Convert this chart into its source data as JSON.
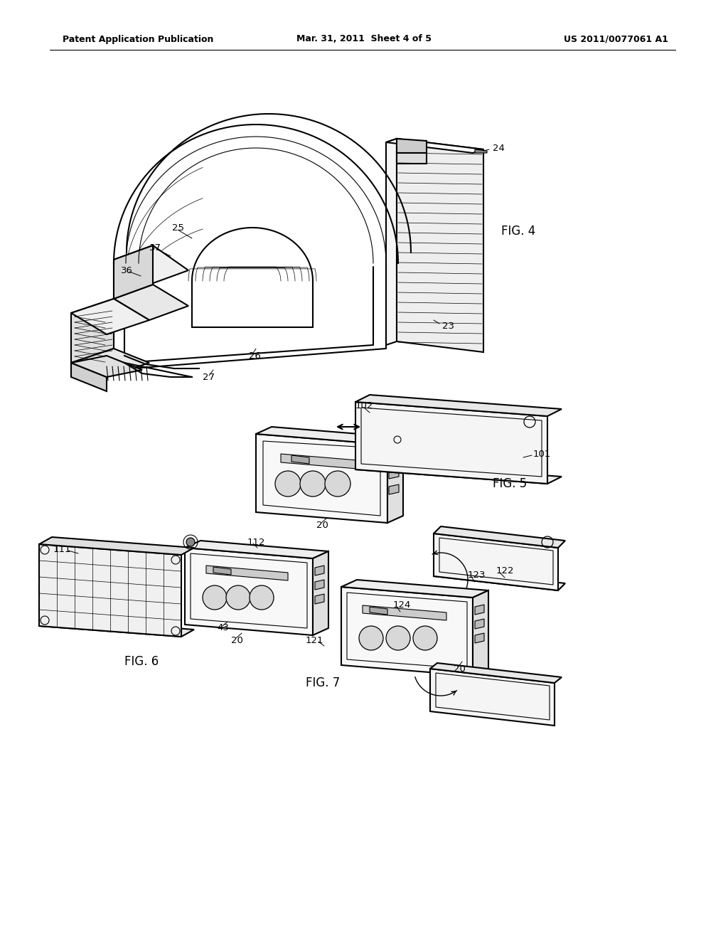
{
  "bg_color": "#ffffff",
  "header_left": "Patent Application Publication",
  "header_mid": "Mar. 31, 2011  Sheet 4 of 5",
  "header_right": "US 2011/0077061 A1",
  "fig4_label": "FIG. 4",
  "fig5_label": "FIG. 5",
  "fig6_label": "FIG. 6",
  "fig7_label": "FIG. 7",
  "line_color": "#000000",
  "text_color": "#000000",
  "fig_label_fontsize": 12,
  "ref_fontsize": 9.5,
  "header_fontsize": 9
}
